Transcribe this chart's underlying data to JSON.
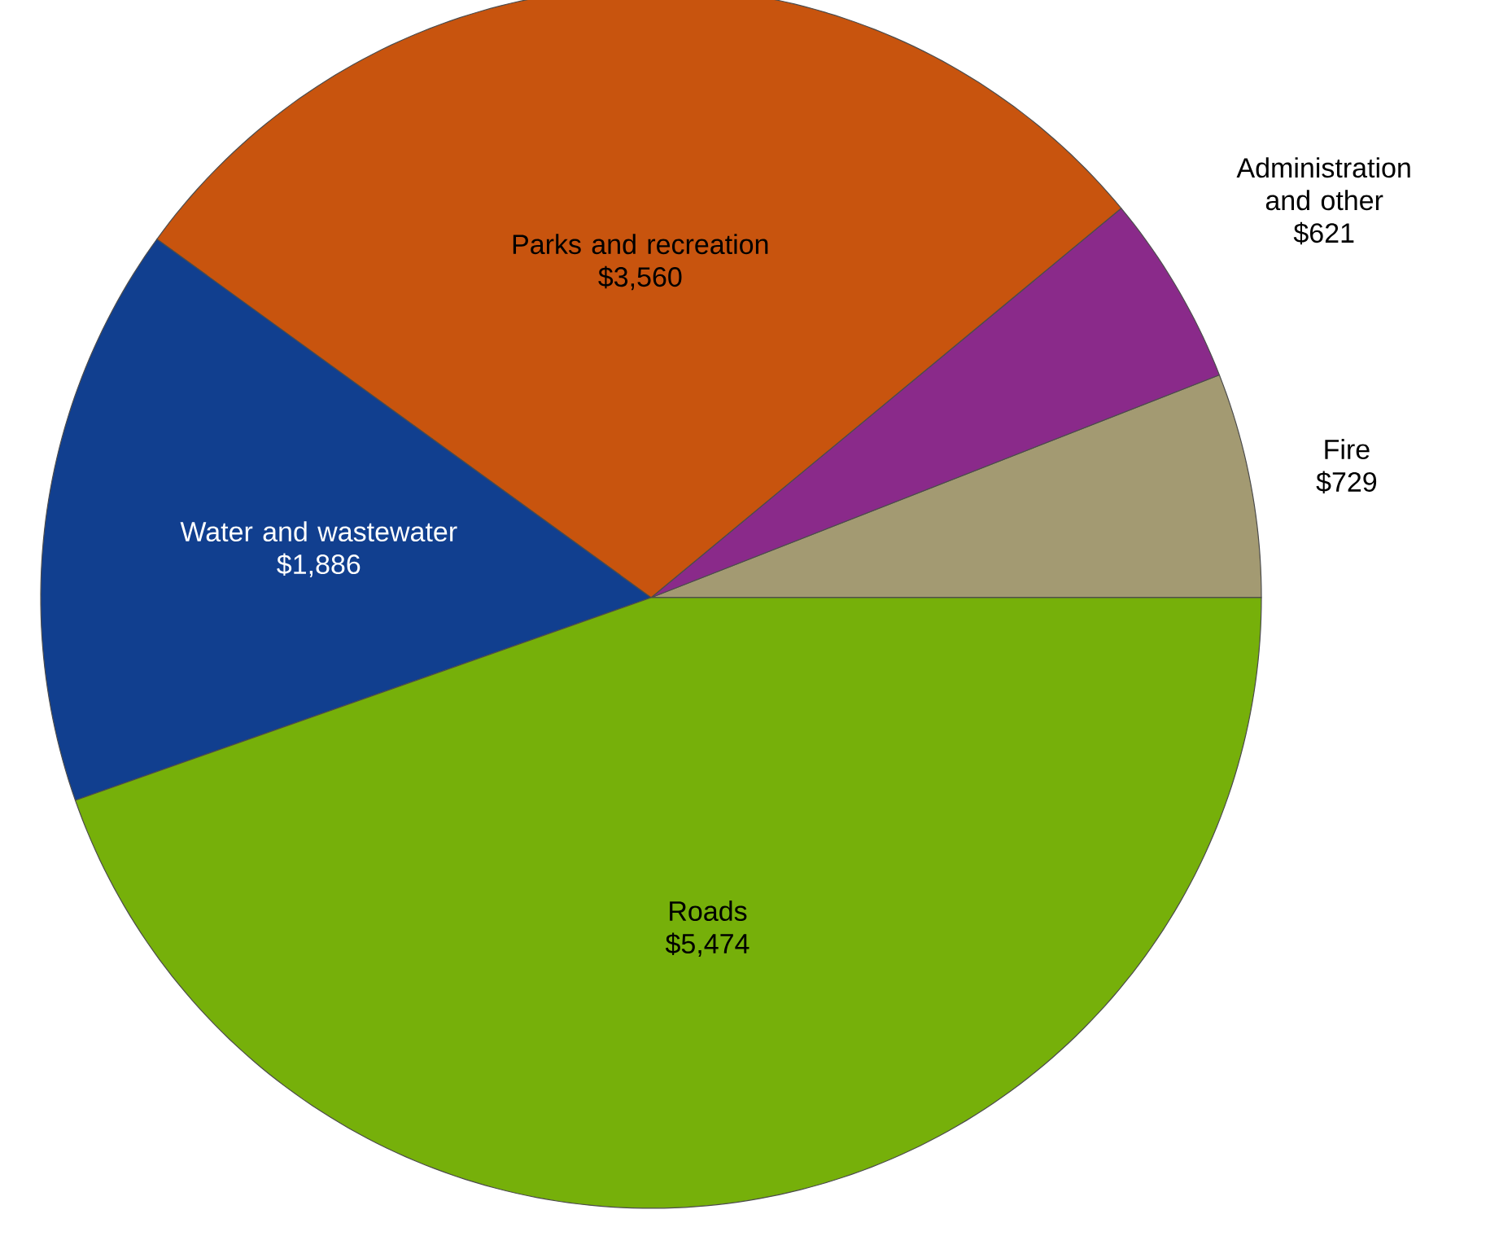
{
  "chart_data": {
    "type": "pie",
    "categories": [
      "Fire",
      "Administration and other",
      "Parks and recreation",
      "Water and wastewater",
      "Roads"
    ],
    "values": [
      729,
      621,
      3560,
      1886,
      5474
    ],
    "value_labels": [
      "$729",
      "$621",
      "$3,560",
      "$1,886",
      "$5,474"
    ],
    "colors": [
      "#a39a72",
      "#8a2a8a",
      "#c8540e",
      "#113f8f",
      "#76b00a"
    ]
  }
}
